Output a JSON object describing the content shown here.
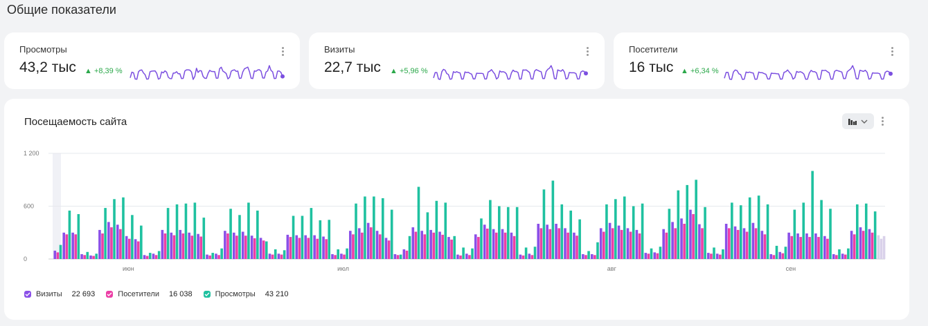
{
  "page": {
    "title": "Общие показатели"
  },
  "kpis": [
    {
      "label": "Просмотры",
      "value": "43,2 тыс",
      "delta": "▲ +8,39 %",
      "color": "#7b4fe0"
    },
    {
      "label": "Визиты",
      "value": "22,7 тыс",
      "delta": "▲ +5,96 %",
      "color": "#7b4fe0"
    },
    {
      "label": "Посетители",
      "value": "16 тыс",
      "delta": "▲ +6,34 %",
      "color": "#7b4fe0"
    }
  ],
  "colors": {
    "visits": "#8a4fe8",
    "visitors": "#ec3fa6",
    "views": "#1fc1a0",
    "delta": "#2ba84a"
  },
  "chart": {
    "title": "Посещаемость сайта",
    "legend": [
      {
        "name": "Визиты",
        "total": "22 693"
      },
      {
        "name": "Посетители",
        "total": "16 038"
      },
      {
        "name": "Просмотры",
        "total": "43 210"
      }
    ]
  },
  "chart_data": {
    "type": "bar",
    "title": "Посещаемость сайта",
    "ylim": [
      0,
      1200
    ],
    "yticks": [
      "0",
      "600",
      "1 200"
    ],
    "month_labels": [
      {
        "label": "июн",
        "index": 8
      },
      {
        "label": "июл",
        "index": 32
      },
      {
        "label": "авг",
        "index": 62
      },
      {
        "label": "сен",
        "index": 82
      }
    ],
    "series": [
      {
        "name": "Визиты",
        "values": [
          95,
          300,
          300,
          55,
          40,
          330,
          420,
          390,
          260,
          225,
          45,
          60,
          330,
          300,
          330,
          300,
          285,
          50,
          60,
          320,
          300,
          310,
          265,
          240,
          60,
          60,
          275,
          270,
          270,
          270,
          255,
          55,
          60,
          320,
          350,
          410,
          320,
          240,
          55,
          110,
          360,
          320,
          330,
          310,
          250,
          50,
          60,
          280,
          390,
          340,
          340,
          300,
          50,
          60,
          400,
          390,
          400,
          350,
          300,
          55,
          55,
          350,
          410,
          380,
          350,
          330,
          70,
          75,
          340,
          420,
          460,
          560,
          395,
          70,
          60,
          400,
          370,
          350,
          410,
          320,
          55,
          80,
          300,
          290,
          290,
          290,
          260,
          55,
          60,
          320,
          360,
          340,
          270
        ]
      },
      {
        "name": "Посетители",
        "values": [
          75,
          280,
          280,
          45,
          35,
          290,
          360,
          340,
          230,
          200,
          35,
          45,
          290,
          270,
          290,
          265,
          255,
          40,
          45,
          290,
          265,
          265,
          235,
          210,
          50,
          50,
          250,
          240,
          240,
          230,
          225,
          45,
          50,
          280,
          300,
          360,
          280,
          210,
          45,
          95,
          310,
          280,
          300,
          275,
          220,
          40,
          45,
          250,
          345,
          300,
          300,
          260,
          40,
          45,
          350,
          340,
          350,
          300,
          265,
          45,
          45,
          310,
          350,
          330,
          310,
          290,
          60,
          65,
          300,
          350,
          400,
          510,
          350,
          60,
          50,
          350,
          330,
          310,
          350,
          280,
          45,
          65,
          260,
          250,
          250,
          250,
          230,
          45,
          50,
          280,
          320,
          300,
          230
        ]
      },
      {
        "name": "Просмотры",
        "values": [
          160,
          550,
          510,
          80,
          60,
          580,
          680,
          700,
          500,
          380,
          70,
          90,
          580,
          620,
          630,
          640,
          470,
          70,
          120,
          570,
          500,
          640,
          550,
          200,
          110,
          100,
          490,
          490,
          580,
          440,
          445,
          110,
          120,
          630,
          710,
          710,
          690,
          560,
          50,
          260,
          820,
          530,
          660,
          640,
          260,
          130,
          120,
          460,
          670,
          600,
          590,
          590,
          130,
          140,
          790,
          890,
          620,
          550,
          450,
          90,
          190,
          620,
          680,
          710,
          600,
          630,
          120,
          140,
          570,
          780,
          840,
          900,
          590,
          130,
          110,
          640,
          610,
          700,
          720,
          620,
          150,
          140,
          560,
          640,
          1000,
          670,
          570,
          110,
          120,
          620,
          630,
          540,
          260
        ]
      }
    ]
  }
}
